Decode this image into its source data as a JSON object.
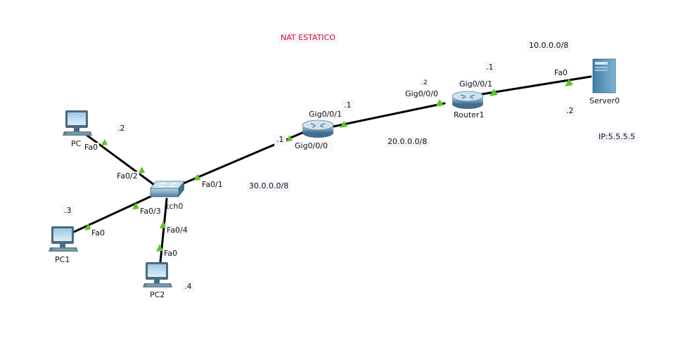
{
  "title": "NAT ESTATICO",
  "networks": {
    "net_a": "10.0.0.0/8",
    "net_b": "20.0.0.0/8",
    "net_c": "30.0.0.0/8"
  },
  "server_ip_note": "IP:5.5.5.5",
  "devices": {
    "pc0": "PC",
    "pc1": "PC1",
    "pc2": "PC2",
    "switch0": "tch0",
    "router0": "",
    "router1": "Router1",
    "server0": "Server0"
  },
  "interfaces": {
    "pc0_fa0": "Fa0",
    "sw_fa0_2": "Fa0/2",
    "sw_fa0_1": "Fa0/1",
    "sw_fa0_3": "Fa0/3",
    "sw_fa0_4": "Fa0/4",
    "pc1_fa0": "Fa0",
    "pc2_fa0": "Fa0",
    "r0_gig001": "Gig0/0/1",
    "r0_gig000": "Gig0/0/0",
    "r1_gig000": "Gig0/0/0",
    "r1_gig001": "Gig0/0/1",
    "srv_fa0": "Fa0"
  },
  "host_addresses": {
    "pc0": ".2",
    "pc1": ".3",
    "pc2": ".4",
    "r0_gig000": ".1",
    "r0_gig001": ".1",
    "r1_gig000": ".2",
    "r1_gig001": ".1",
    "server0": ".2"
  },
  "colors": {
    "link": "#000000",
    "link_up_marker": "#5cc42c",
    "title_text": "#e0102a"
  }
}
